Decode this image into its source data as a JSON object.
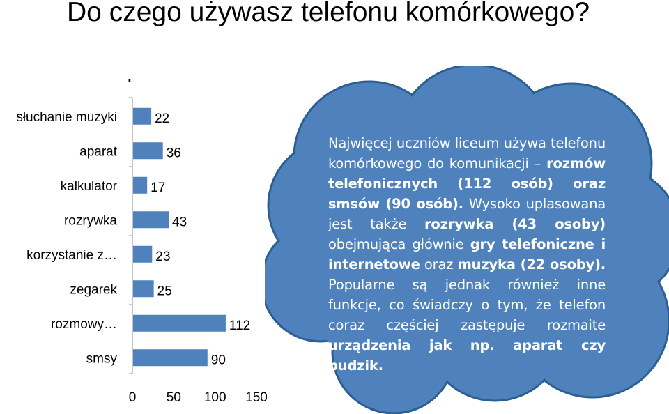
{
  "title": "Do czego używasz telefonu komórkowego?",
  "dot_mark": ".",
  "colors": {
    "bar": "#4f81bd",
    "cloud": "#4f81bd",
    "cloud_edge": "#2b5f92"
  },
  "chart_data": {
    "type": "bar",
    "orientation": "horizontal",
    "title": "",
    "categories": [
      "słuchanie muzyki",
      "aparat",
      "kalkulator",
      "rozrywka",
      "korzystanie z…",
      "zegarek",
      "rozmowy…",
      "smsy"
    ],
    "values": [
      22,
      36,
      17,
      43,
      23,
      25,
      112,
      90
    ],
    "xlim": [
      0,
      150
    ],
    "xticks": [
      "0",
      "50",
      "100",
      "150"
    ],
    "grid": false,
    "legend": "none"
  },
  "bubble": {
    "p1": "Najwięcej uczniów liceum używa telefonu komórkowego do komunikacji – ",
    "b1": "rozmów telefonicznych (112 osób) oraz smsów (90 osób).",
    "p2": " Wysoko uplasowana jest także ",
    "b2": "rozrywka (43 osoby)",
    "p3": " obejmująca głównie ",
    "b3": "gry telefoniczne i internetowe",
    "p4": " oraz ",
    "b4": "muzyka (22 osoby).",
    "p5": " Popularne są jednak również inne funkcje, co świadczy o tym, że telefon coraz częściej zastępuje rozmaite ",
    "b5": "urządzenia jak np. aparat czy budzik."
  }
}
